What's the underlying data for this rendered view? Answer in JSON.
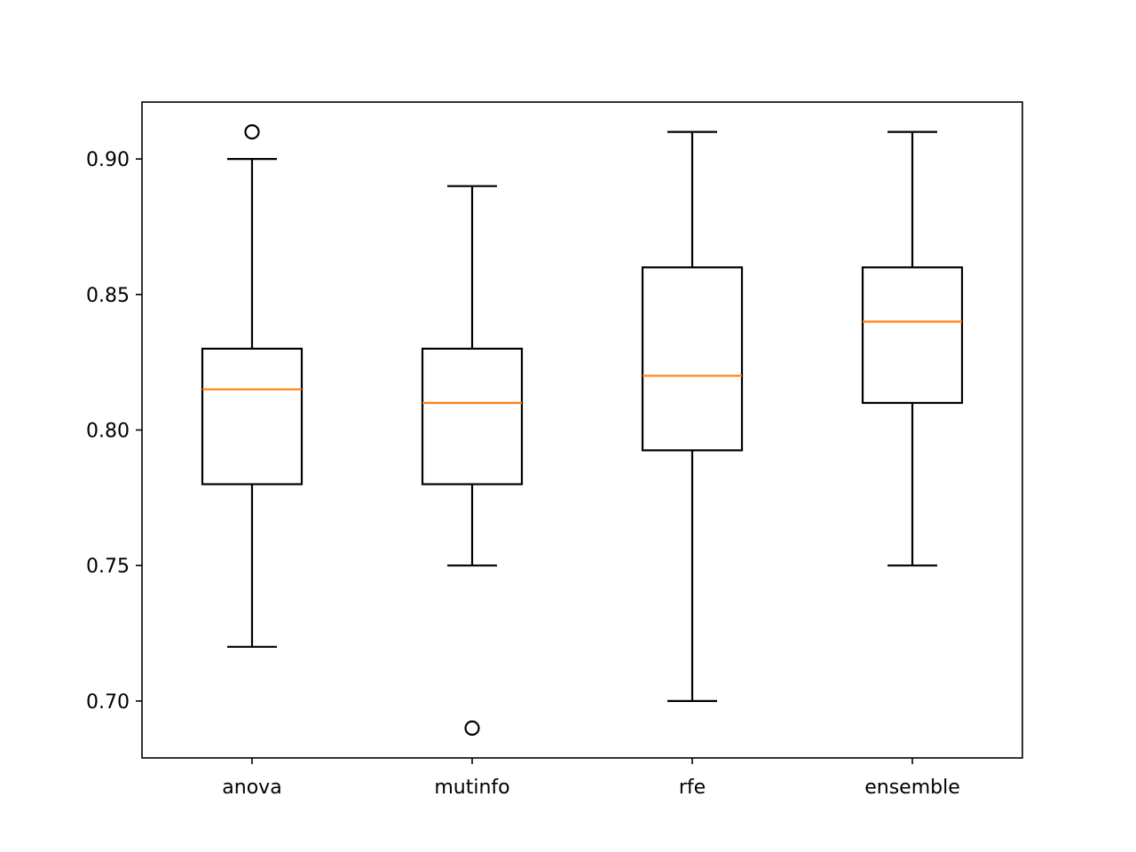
{
  "chart_data": {
    "type": "box",
    "title": "",
    "xlabel": "",
    "ylabel": "",
    "ylim": [
      0.679,
      0.921
    ],
    "yticks": [
      "0.70",
      "0.75",
      "0.80",
      "0.85",
      "0.90"
    ],
    "grid": false,
    "categories": [
      "anova",
      "mutinfo",
      "rfe",
      "ensemble"
    ],
    "boxes": [
      {
        "category": "anova",
        "whisker_low": 0.72,
        "q1": 0.78,
        "median": 0.815,
        "q3": 0.83,
        "whisker_high": 0.9,
        "outliers": [
          0.91
        ]
      },
      {
        "category": "mutinfo",
        "whisker_low": 0.75,
        "q1": 0.78,
        "median": 0.81,
        "q3": 0.83,
        "whisker_high": 0.89,
        "outliers": [
          0.69
        ]
      },
      {
        "category": "rfe",
        "whisker_low": 0.7,
        "q1": 0.7925,
        "median": 0.82,
        "q3": 0.86,
        "whisker_high": 0.91,
        "outliers": []
      },
      {
        "category": "ensemble",
        "whisker_low": 0.75,
        "q1": 0.81,
        "median": 0.84,
        "q3": 0.86,
        "whisker_high": 0.91,
        "outliers": []
      }
    ],
    "colors": {
      "box": "#000000",
      "median": "#ff7f0e",
      "axes": "#000000",
      "background": "#ffffff"
    }
  }
}
